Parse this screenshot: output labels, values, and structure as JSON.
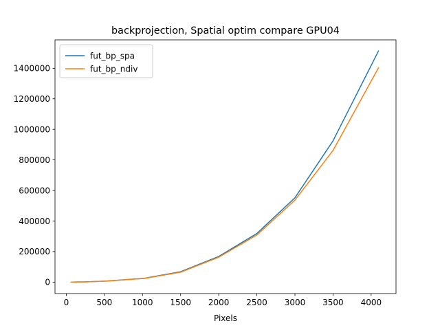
{
  "chart_data": {
    "type": "line",
    "title": "backprojection, Spatial optim compare GPU04",
    "xlabel": "Pixels",
    "ylabel": "",
    "xlim": [
      -148,
      4326
    ],
    "ylim": [
      -75000,
      1586000
    ],
    "xticks": [
      0,
      500,
      1000,
      1500,
      2000,
      2500,
      3000,
      3500,
      4000
    ],
    "xtick_labels": [
      "0",
      "500",
      "1000",
      "1500",
      "2000",
      "2500",
      "3000",
      "3500",
      "4000"
    ],
    "yticks": [
      0,
      200000,
      400000,
      600000,
      800000,
      1000000,
      1200000,
      1400000
    ],
    "ytick_labels": [
      "0",
      "200000",
      "400000",
      "600000",
      "800000",
      "1000000",
      "1200000",
      "1400000"
    ],
    "legend_position": "top-left",
    "series": [
      {
        "name": "fut_bp_spa",
        "color": "#1f77b4",
        "x": [
          64,
          128,
          256,
          512,
          1024,
          1500,
          2000,
          2500,
          3000,
          3500,
          4096
        ],
        "y": [
          300,
          800,
          1800,
          6500,
          25000,
          68000,
          168000,
          318000,
          552000,
          925000,
          1513000
        ]
      },
      {
        "name": "fut_bp_ndiv",
        "color": "#ff7f0e",
        "x": [
          64,
          128,
          256,
          512,
          1024,
          1500,
          2000,
          2500,
          3000,
          3500,
          4096
        ],
        "y": [
          300,
          800,
          1800,
          6300,
          24000,
          65000,
          163000,
          308000,
          537000,
          862000,
          1403000
        ]
      }
    ]
  }
}
